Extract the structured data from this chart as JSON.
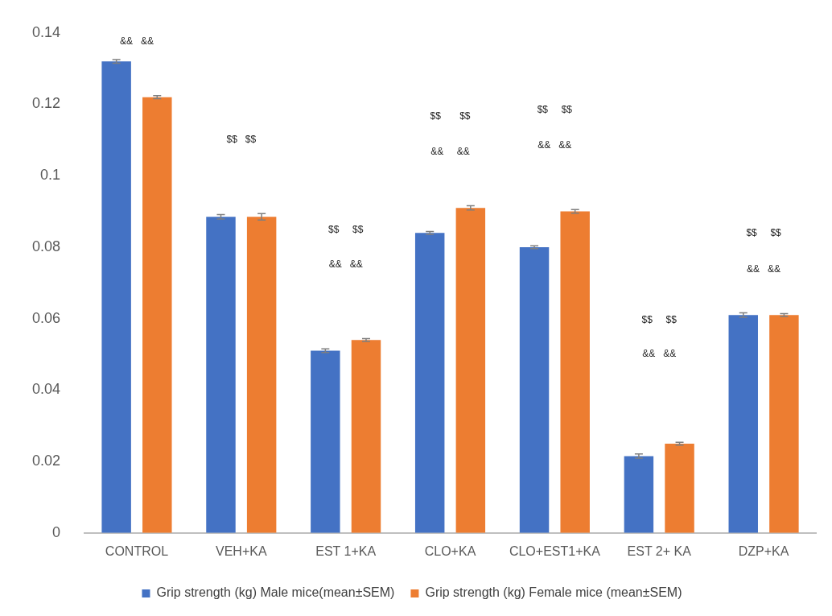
{
  "chart_data": {
    "type": "bar",
    "categories": [
      "CONTROL",
      "VEH+KA",
      "EST 1+KA",
      "CLO+KA",
      "CLO+EST1+KA",
      "EST 2+ KA",
      "DZP+KA"
    ],
    "series": [
      {
        "name": "Grip strength (kg) Male mice(mean±SEM)",
        "color": "#4472c4",
        "values": [
          0.132,
          0.0885,
          0.051,
          0.084,
          0.08,
          0.0215,
          0.061
        ],
        "errors": [
          0.0005,
          0.0006,
          0.0005,
          0.0004,
          0.0004,
          0.0006,
          0.0006
        ]
      },
      {
        "name": "Grip strength (kg) Female mice (mean±SEM)",
        "color": "#ed7d31",
        "values": [
          0.122,
          0.0885,
          0.054,
          0.091,
          0.09,
          0.025,
          0.061
        ],
        "errors": [
          0.0004,
          0.0009,
          0.0004,
          0.0006,
          0.0005,
          0.0004,
          0.0004
        ]
      }
    ],
    "ylim": [
      0,
      0.14
    ],
    "yticks": [
      0,
      0.02,
      0.04,
      0.06,
      0.08,
      0.1,
      0.12,
      0.14
    ],
    "grid": false,
    "legend": "bottom",
    "annotations": [
      "&&   &&",
      "$$   $$",
      "$$     $$",
      "&&   &&",
      "$$       $$",
      "&&     &&",
      "$$     $$",
      "&&   &&",
      "$$     $$",
      "&&   &&",
      "$$     $$",
      "&&   &&"
    ]
  }
}
